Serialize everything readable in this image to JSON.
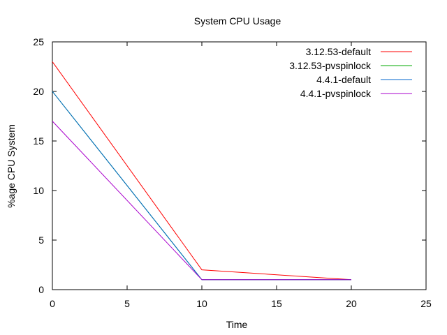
{
  "chart_data": {
    "type": "line",
    "title": "System CPU Usage",
    "xlabel": "Time",
    "ylabel": "%age CPU System",
    "xlim": [
      0,
      25
    ],
    "ylim": [
      0,
      25
    ],
    "xticks": [
      0,
      5,
      10,
      15,
      20,
      25
    ],
    "yticks": [
      0,
      5,
      10,
      15,
      20,
      25
    ],
    "grid": false,
    "legend_position": "top-right",
    "x": [
      0,
      10,
      20
    ],
    "series": [
      {
        "name": "3.12.53-default",
        "color": "#ff0000",
        "values": [
          23,
          2,
          1
        ]
      },
      {
        "name": "3.12.53-pvspinlock",
        "color": "#00aa00",
        "values": [
          20,
          1,
          1
        ]
      },
      {
        "name": "4.4.1-default",
        "color": "#0066cc",
        "values": [
          20,
          1,
          1
        ]
      },
      {
        "name": "4.4.1-pvspinlock",
        "color": "#aa00cc",
        "values": [
          17,
          1,
          1
        ]
      }
    ]
  }
}
